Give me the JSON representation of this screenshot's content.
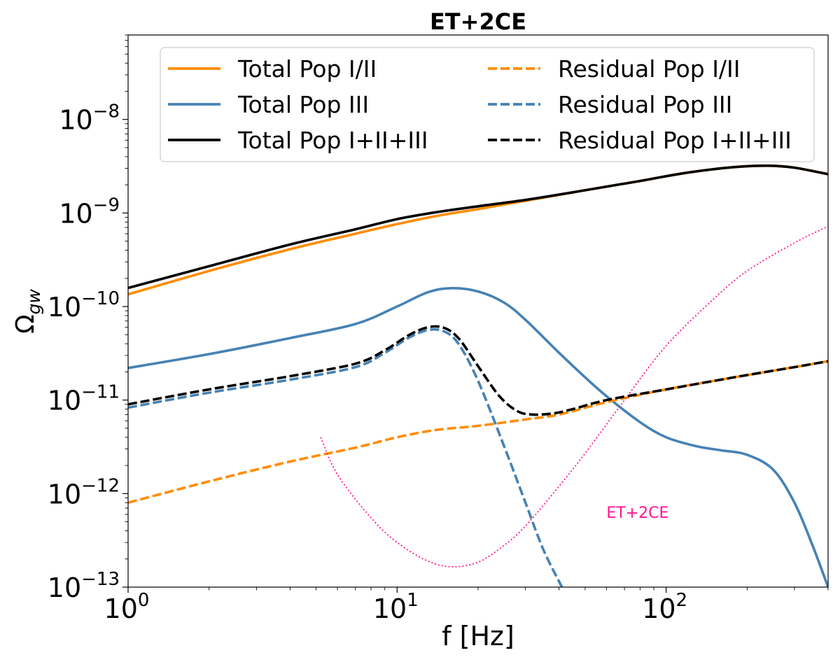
{
  "chart_data": {
    "type": "line",
    "title": "ET+2CE",
    "xlabel": "f [Hz]",
    "ylabel": "Ω_gw",
    "ylabel_main": "Ω",
    "ylabel_sub": "gw",
    "x_scale": "log",
    "y_scale": "log",
    "xlim": [
      1,
      400
    ],
    "ylim": [
      1e-13,
      8e-08
    ],
    "grid": false,
    "legend_placement": "top",
    "x_ticks": [
      {
        "value": 1,
        "base": "10",
        "exp": "0"
      },
      {
        "value": 10,
        "base": "10",
        "exp": "1"
      },
      {
        "value": 100,
        "base": "10",
        "exp": "2"
      }
    ],
    "y_ticks": [
      {
        "value": 1e-13,
        "base": "10",
        "exp": "−13"
      },
      {
        "value": 1e-12,
        "base": "10",
        "exp": "−12"
      },
      {
        "value": 1e-11,
        "base": "10",
        "exp": "−11"
      },
      {
        "value": 1e-10,
        "base": "10",
        "exp": "−10"
      },
      {
        "value": 1e-09,
        "base": "10",
        "exp": "−9"
      },
      {
        "value": 1e-08,
        "base": "10",
        "exp": "−8"
      }
    ],
    "series": [
      {
        "name": "Total Pop I/II",
        "color": "#ff8c00",
        "dash": "solid",
        "x": [
          1,
          2,
          4,
          7,
          10,
          14,
          20,
          30,
          50,
          80,
          120,
          180,
          240,
          300,
          400
        ],
        "y": [
          1.35e-10,
          2.4e-10,
          4.1e-10,
          6e-10,
          7.6e-10,
          9.3e-10,
          1.1e-09,
          1.35e-09,
          1.75e-09,
          2.2e-09,
          2.7e-09,
          3.1e-09,
          3.2e-09,
          3.05e-09,
          2.6e-09
        ]
      },
      {
        "name": "Total Pop III",
        "color": "#4682b4",
        "dash": "solid",
        "x": [
          1,
          2,
          4,
          7,
          10,
          13,
          16,
          20,
          25,
          30,
          40,
          50,
          60,
          80,
          100,
          130,
          160,
          200,
          250,
          300,
          350,
          400
        ],
        "y": [
          2.2e-11,
          3.1e-11,
          4.6e-11,
          6.5e-11,
          1e-10,
          1.42e-10,
          1.57e-10,
          1.45e-10,
          1.1e-10,
          7.2e-11,
          3.2e-11,
          1.75e-11,
          1.1e-11,
          5.8e-12,
          4e-12,
          3.2e-12,
          2.9e-12,
          2.6e-12,
          1.8e-12,
          8e-13,
          2.8e-13,
          1e-13
        ]
      },
      {
        "name": "Total Pop I+II+III",
        "color": "#000000",
        "dash": "solid",
        "x": [
          1,
          2,
          4,
          7,
          10,
          14,
          20,
          30,
          50,
          80,
          120,
          180,
          240,
          300,
          400
        ],
        "y": [
          1.58e-10,
          2.7e-10,
          4.6e-10,
          6.7e-10,
          8.6e-10,
          1.02e-09,
          1.18e-09,
          1.38e-09,
          1.75e-09,
          2.2e-09,
          2.7e-09,
          3.1e-09,
          3.2e-09,
          3.05e-09,
          2.6e-09
        ]
      },
      {
        "name": "Residual Pop I/II",
        "color": "#ff8c00",
        "dash": "dashed",
        "x": [
          1,
          2,
          4,
          7,
          10,
          14,
          20,
          30,
          40,
          60,
          100,
          150,
          200,
          300,
          400
        ],
        "y": [
          8e-13,
          1.35e-12,
          2.2e-12,
          3.1e-12,
          4e-12,
          4.8e-12,
          5.3e-12,
          6.2e-12,
          7e-12,
          9.5e-12,
          1.3e-11,
          1.6e-11,
          1.85e-11,
          2.25e-11,
          2.6e-11
        ]
      },
      {
        "name": "Residual Pop III",
        "color": "#4682b4",
        "dash": "dashed",
        "x": [
          1,
          2,
          4,
          7,
          9,
          11,
          13,
          15,
          17,
          20,
          25,
          30,
          35,
          41
        ],
        "y": [
          8.3e-12,
          1.2e-11,
          1.65e-11,
          2.25e-11,
          3.2e-11,
          4.6e-11,
          5.6e-11,
          5.4e-11,
          3.9e-11,
          1.6e-11,
          3.2e-12,
          8e-13,
          2.5e-13,
          1e-13
        ]
      },
      {
        "name": "Residual Pop I+II+III",
        "color": "#000000",
        "dash": "dashed",
        "x": [
          1,
          2,
          4,
          7,
          9,
          11,
          13,
          15,
          17,
          20,
          24,
          28,
          32,
          38,
          45,
          60,
          100,
          150,
          200,
          300,
          400
        ],
        "y": [
          9e-12,
          1.3e-11,
          1.8e-11,
          2.45e-11,
          3.4e-11,
          4.9e-11,
          6e-11,
          5.9e-11,
          4.5e-11,
          2.3e-11,
          1.1e-11,
          7.6e-12,
          7e-12,
          7.2e-12,
          8e-12,
          1e-11,
          1.3e-11,
          1.6e-11,
          1.85e-11,
          2.25e-11,
          2.6e-11
        ]
      },
      {
        "name": "ET+2CE",
        "color": "#ff1493",
        "dash": "dotted",
        "x": [
          5.2,
          6,
          8,
          10,
          13,
          16,
          20,
          25,
          30,
          40,
          50,
          70,
          100,
          150,
          200,
          300,
          400
        ],
        "y": [
          4e-12,
          1.6e-12,
          5.5e-13,
          3e-13,
          1.9e-13,
          1.65e-13,
          1.85e-13,
          2.8e-13,
          4.5e-13,
          1.2e-12,
          2.7e-12,
          1e-11,
          3.8e-11,
          1.2e-10,
          2.4e-10,
          4.8e-10,
          7.2e-10
        ]
      }
    ],
    "legend": [
      {
        "label": "Total Pop I/II",
        "color": "#ff8c00",
        "dash": "solid"
      },
      {
        "label": "Total Pop III",
        "color": "#4682b4",
        "dash": "solid"
      },
      {
        "label": "Total Pop I+II+III",
        "color": "#000000",
        "dash": "solid"
      },
      {
        "label": "Residual Pop I/II",
        "color": "#ff8c00",
        "dash": "dashed"
      },
      {
        "label": "Residual Pop III",
        "color": "#4682b4",
        "dash": "dashed"
      },
      {
        "label": "Residual Pop I+II+III",
        "color": "#000000",
        "dash": "dashed"
      }
    ],
    "annotations": [
      {
        "text": "ET+2CE",
        "x": 60,
        "y": 5.5e-13,
        "color": "#ff1493"
      }
    ]
  }
}
